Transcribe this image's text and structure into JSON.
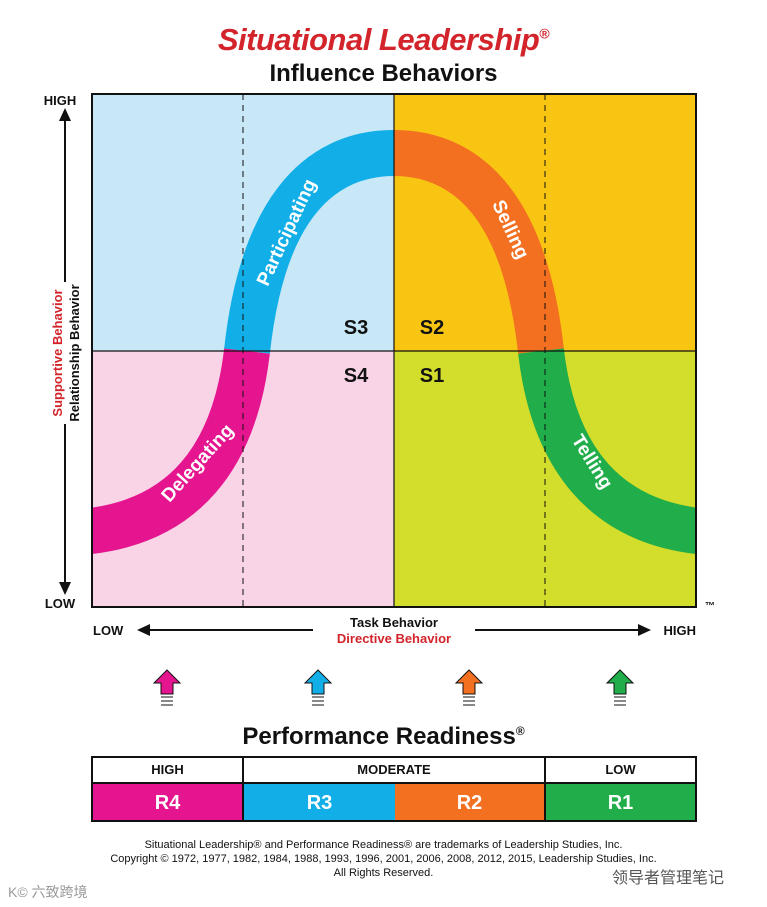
{
  "header": {
    "brand": "Situational Leadership",
    "brand_mark": "®",
    "title": "Influence Behaviors"
  },
  "y_axis": {
    "high": "HIGH",
    "low": "LOW",
    "label_red": "Supportive Behavior",
    "label_black": "Relationship Behavior"
  },
  "x_axis": {
    "low": "LOW",
    "high": "HIGH",
    "label_black": "Task Behavior",
    "label_red": "Directive Behavior",
    "tm": "™"
  },
  "quadrants": {
    "s3": "S3",
    "s2": "S2",
    "s4": "S4",
    "s1": "S1"
  },
  "curve_labels": {
    "participating": "Participating",
    "selling": "Selling",
    "delegating": "Delegating",
    "telling": "Telling"
  },
  "readiness": {
    "title": "Performance Readiness",
    "mark": "®",
    "headers": [
      "HIGH",
      "MODERATE",
      "LOW"
    ],
    "levels": [
      "R4",
      "R3",
      "R2",
      "R1"
    ]
  },
  "colors": {
    "q_s3": "#c8e8f7",
    "q_s2": "#f8c512",
    "q_s4": "#f8d4e6",
    "q_s1": "#d3dd2b",
    "r4": "#e5158f",
    "r3": "#12aee8",
    "r2": "#f37021",
    "r1": "#20ad4a",
    "brand_red": "#d3242b"
  },
  "footer": {
    "line1": "Situational Leadership® and Performance Readiness® are trademarks of Leadership Studies, Inc.",
    "line2": "Copyright © 1972, 1977, 1982, 1984, 1988, 1993, 1996, 2001, 2006, 2008, 2012, 2015, Leadership Studies, Inc.",
    "line3": "All Rights Reserved."
  },
  "watermarks": {
    "left": "K© 六致跨境",
    "right": "领导者管理笔记"
  }
}
